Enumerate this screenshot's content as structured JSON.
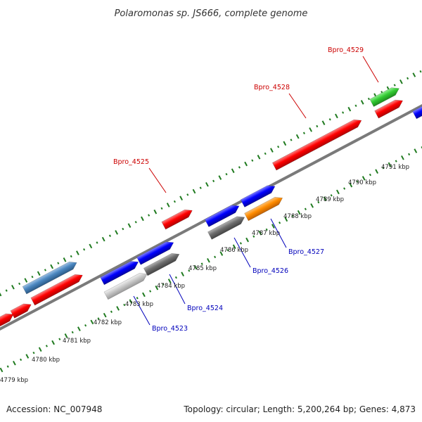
{
  "title": "Polaromonas sp. JS666, complete genome",
  "footer": {
    "accession": "Accession: NC_007948",
    "summary": "Topology: circular; Length: 5,200,264 bp; Genes: 4,873"
  },
  "kbp_labels": [
    "4779 kbp",
    "4780 kbp",
    "4781 kbp",
    "4782 kbp",
    "4783 kbp",
    "4784 kbp",
    "4785 kbp",
    "4786 kbp",
    "4787 kbp",
    "4788 kbp",
    "4789 kbp",
    "4790 kbp",
    "4791 kbp"
  ],
  "gene_labels": [
    {
      "text": "Bpro_4525",
      "color": "#cc0000"
    },
    {
      "text": "Bpro_4528",
      "color": "#cc0000"
    },
    {
      "text": "Bpro_4529",
      "color": "#cc0000"
    },
    {
      "text": "Bpro_4523",
      "color": "#0000bb"
    },
    {
      "text": "Bpro_4524",
      "color": "#0000bb"
    },
    {
      "text": "Bpro_4526",
      "color": "#0000bb"
    },
    {
      "text": "Bpro_4527",
      "color": "#0000bb"
    }
  ],
  "colors": {
    "red": "#ff0000",
    "blue": "#0000ff",
    "steelblue": "#4a86bf",
    "grey": "#6e6e6e",
    "lightgrey": "#c8c8c8",
    "orange": "#ff8c00",
    "green": "#33cc33",
    "backbone": "#7a7a7a",
    "ticks": "#1f7a1f"
  }
}
